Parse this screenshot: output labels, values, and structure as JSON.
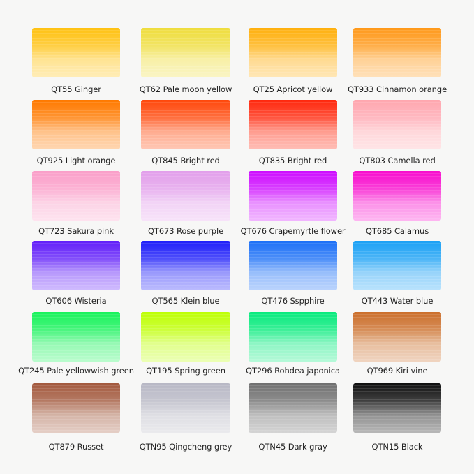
{
  "swatches": [
    {
      "label": "QT55 Ginger",
      "color": "#ffc21a"
    },
    {
      "label": "QT62 Pale moon yellow",
      "color": "#eedd44"
    },
    {
      "label": "QT25 Apricot yellow",
      "color": "#ffb015"
    },
    {
      "label": "QT933 Cinnamon orange",
      "color": "#ff9a20"
    },
    {
      "label": "QT925 Light orange",
      "color": "#ff7a05"
    },
    {
      "label": "QT845 Bright red",
      "color": "#ff4a10"
    },
    {
      "label": "QT835 Bright red",
      "color": "#ff2a10"
    },
    {
      "label": "QT803 Camella red",
      "color": "#ffa8b0"
    },
    {
      "label": "QT723 Sakura pink",
      "color": "#f7a0c8"
    },
    {
      "label": "QT673 Rose purple",
      "color": "#e0a0e8"
    },
    {
      "label": "QT676 Crapemyrtle flower",
      "color": "#c810ff"
    },
    {
      "label": "QT685 Calamus",
      "color": "#f010c8"
    },
    {
      "label": "QT606 Wisteria",
      "color": "#6020f0"
    },
    {
      "label": "QT565 Klein blue",
      "color": "#2020f0"
    },
    {
      "label": "QT476 Sspphire",
      "color": "#2070f0"
    },
    {
      "label": "QT443 Water blue",
      "color": "#20a0f0"
    },
    {
      "label": "QT245 Pale yellowwish green",
      "color": "#20f060"
    },
    {
      "label": "QT195 Spring green",
      "color": "#c0ff10"
    },
    {
      "label": "QT296 Rohdea japonica",
      "color": "#10e880"
    },
    {
      "label": "QT969 Kiri vine",
      "color": "#c87030"
    },
    {
      "label": "QT879 Russet",
      "color": "#a05a40"
    },
    {
      "label": "QTN95 Qingcheng grey",
      "color": "#b8b8c4"
    },
    {
      "label": "QTN45 Dark gray",
      "color": "#707070"
    },
    {
      "label": "QTN15 Black",
      "color": "#101010"
    }
  ]
}
